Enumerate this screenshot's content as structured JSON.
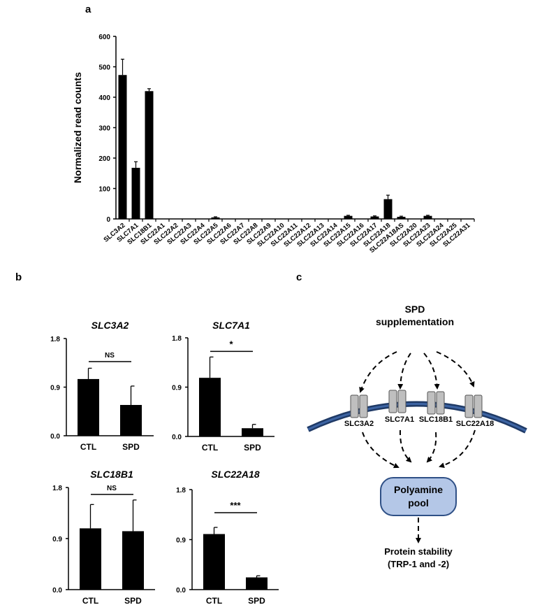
{
  "panel_labels": {
    "a": "a",
    "b": "b",
    "c": "c"
  },
  "chart_data": [
    {
      "type": "bar",
      "panel": "a",
      "title": "",
      "xlabel": "",
      "ylabel": "Normalized read counts",
      "ylim": [
        0,
        600
      ],
      "yticks": [
        0,
        100,
        200,
        300,
        400,
        500,
        600
      ],
      "grid": false,
      "categories": [
        "SLC3A2",
        "SLC7A1",
        "SLC18B1",
        "SLC22A1",
        "SLC22A2",
        "SLC22A3",
        "SLC22A4",
        "SLC22A5",
        "SLC22A6",
        "SLC22A7",
        "SLC22A8",
        "SLC22A9",
        "SLC22A10",
        "SLC22A11",
        "SLC22A12",
        "SLC22A13",
        "SLC22A14",
        "SLC22A15",
        "SLC22A16",
        "SLC22A17",
        "SLC22A18",
        "SLC22A18AS",
        "SLC22A20",
        "SLC22A23",
        "SLC22A24",
        "SLC22A25",
        "SLC22A31"
      ],
      "values": [
        473,
        168,
        420,
        0,
        0,
        0,
        0,
        5,
        0,
        0,
        0,
        0,
        0,
        0,
        0,
        0,
        0,
        10,
        0,
        8,
        65,
        7,
        0,
        10,
        0,
        0,
        0
      ],
      "errors": [
        52,
        20,
        8,
        0,
        0,
        0,
        0,
        2,
        0,
        0,
        0,
        0,
        0,
        0,
        0,
        0,
        0,
        2,
        0,
        2,
        13,
        2,
        0,
        2,
        0,
        0,
        0
      ],
      "bar_color": "#000000"
    },
    {
      "type": "bar",
      "panel": "b",
      "title": "SLC3A2",
      "categories": [
        "CTL",
        "SPD"
      ],
      "values": [
        1.05,
        0.57
      ],
      "errors": [
        0.2,
        0.35
      ],
      "ylim": [
        0,
        1.8
      ],
      "yticks": [
        "0.0",
        "0.9",
        "1.8"
      ],
      "significance": "NS"
    },
    {
      "type": "bar",
      "panel": "b",
      "title": "SLC7A1",
      "categories": [
        "CTL",
        "SPD"
      ],
      "values": [
        1.07,
        0.15
      ],
      "errors": [
        0.38,
        0.07
      ],
      "ylim": [
        0,
        1.8
      ],
      "yticks": [
        "0.0",
        "0.9",
        "1.8"
      ],
      "significance": "*"
    },
    {
      "type": "bar",
      "panel": "b",
      "title": "SLC18B1",
      "categories": [
        "CTL",
        "SPD"
      ],
      "values": [
        1.08,
        1.03
      ],
      "errors": [
        0.42,
        0.55
      ],
      "ylim": [
        0,
        1.8
      ],
      "yticks": [
        "0.0",
        "0.9",
        "1.8"
      ],
      "significance": "NS"
    },
    {
      "type": "bar",
      "panel": "b",
      "title": "SLC22A18",
      "categories": [
        "CTL",
        "SPD"
      ],
      "values": [
        1.0,
        0.22
      ],
      "errors": [
        0.12,
        0.03
      ],
      "ylim": [
        0,
        1.8
      ],
      "yticks": [
        "0.0",
        "0.9",
        "1.8"
      ],
      "significance": "***"
    }
  ],
  "diagram": {
    "source_line1": "SPD",
    "source_line2": "supplementation",
    "transporters": [
      "SLC3A2",
      "SLC7A1",
      "SLC18B1",
      "SLC22A18"
    ],
    "pool_line1": "Polyamine",
    "pool_line2": "pool",
    "outcome_line1": "Protein stability",
    "outcome_line2": "(TRP-1 and -2)",
    "colors": {
      "membrane": "#2f5086",
      "transporter": "#bfbfbf",
      "pool": "#b4c7e7",
      "pool_border": "#2f5086"
    }
  }
}
